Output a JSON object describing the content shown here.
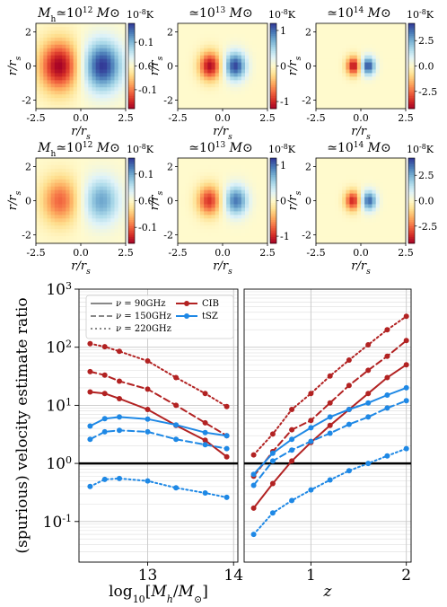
{
  "chart_data": [
    {
      "type": "heatmap",
      "panel": "row1-col1",
      "title": "M_h≃10^12 M⊙",
      "colorbar_unit": "10^-8 K",
      "colorbar_ticks": [
        "0.1",
        "0.0",
        "-0.1"
      ],
      "colorbar_ticks_values": [
        0.1,
        0.0,
        -0.1
      ],
      "vmin": -0.18,
      "vmax": 0.18,
      "dipole": {
        "sigma": 0.75,
        "offset": 1.2,
        "amplitude": 0.18
      },
      "xlabel": "r/r_s",
      "ylabel": "r/r_s",
      "xticks": [
        "-2.5",
        "0.0",
        "2.5"
      ],
      "xticks_values": [
        -2.5,
        0,
        2.5
      ],
      "yticks": [
        "2",
        "0",
        "-2"
      ],
      "yticks_values": [
        2,
        0,
        -2
      ],
      "extent": [
        -2.5,
        2.5,
        -2.5,
        2.5
      ]
    },
    {
      "type": "heatmap",
      "panel": "row1-col2",
      "title": "≃10^13 M⊙",
      "colorbar_unit": "10^-8 K",
      "colorbar_ticks": [
        "1",
        "0",
        "-1"
      ],
      "colorbar_ticks_values": [
        1,
        0,
        -1
      ],
      "vmin": -1.2,
      "vmax": 1.2,
      "dipole": {
        "sigma": 0.42,
        "offset": 0.7,
        "amplitude": 1.15
      },
      "xlabel": "r/r_s",
      "ylabel": "r/r_s",
      "xticks": [
        "-2.5",
        "0.0",
        "2.5"
      ],
      "xticks_values": [
        -2.5,
        0,
        2.5
      ],
      "yticks": [
        "2",
        "0",
        "-2"
      ],
      "yticks_values": [
        2,
        0,
        -2
      ],
      "extent": [
        -2.5,
        2.5,
        -2.5,
        2.5
      ]
    },
    {
      "type": "heatmap",
      "panel": "row1-col3",
      "title": "≃10^14 M⊙",
      "colorbar_unit": "10^-8 K",
      "colorbar_ticks": [
        "2.5",
        "0.0",
        "-2.5"
      ],
      "colorbar_ticks_values": [
        2.5,
        0.0,
        -2.5
      ],
      "vmin": -4.2,
      "vmax": 4.2,
      "dipole": {
        "sigma": 0.28,
        "offset": 0.4,
        "amplitude": 4.0
      },
      "xlabel": "r/r_s",
      "ylabel": "r/r_s",
      "xticks": [
        "-2.5",
        "0.0",
        "2.5"
      ],
      "xticks_values": [
        -2.5,
        0,
        2.5
      ],
      "yticks": [
        "2",
        "0",
        "-2"
      ],
      "yticks_values": [
        2,
        0,
        -2
      ],
      "extent": [
        -2.5,
        2.5,
        -2.5,
        2.5
      ]
    },
    {
      "type": "heatmap",
      "panel": "row2-col1",
      "title": "M_h≃10^12 M⊙",
      "colorbar_unit": "10^-8 K",
      "colorbar_ticks": [
        "0.1",
        "0.0",
        "-0.1"
      ],
      "colorbar_ticks_values": [
        0.1,
        0.0,
        -0.1
      ],
      "vmin": -0.16,
      "vmax": 0.16,
      "dipole": {
        "sigma": 0.7,
        "offset": 1.15,
        "amplitude": 0.1
      },
      "xlabel": "r/r_s",
      "ylabel": "r/r_s",
      "xticks": [
        "-2.5",
        "0.0",
        "2.5"
      ],
      "xticks_values": [
        -2.5,
        0,
        2.5
      ],
      "yticks": [
        "2",
        "0",
        "-2"
      ],
      "yticks_values": [
        2,
        0,
        -2
      ],
      "extent": [
        -2.5,
        2.5,
        -2.5,
        2.5
      ]
    },
    {
      "type": "heatmap",
      "panel": "row2-col2",
      "title": "≃10^13 M⊙",
      "colorbar_unit": "10^-8 K",
      "colorbar_ticks": [
        "1",
        "0",
        "-1"
      ],
      "colorbar_ticks_values": [
        1,
        0,
        -1
      ],
      "vmin": -1.2,
      "vmax": 1.2,
      "dipole": {
        "sigma": 0.45,
        "offset": 0.75,
        "amplitude": 0.95
      },
      "xlabel": "r/r_s",
      "ylabel": "r/r_s",
      "xticks": [
        "-2.5",
        "0.0",
        "2.5"
      ],
      "xticks_values": [
        -2.5,
        0,
        2.5
      ],
      "yticks": [
        "2",
        "0",
        "-2"
      ],
      "yticks_values": [
        2,
        0,
        -2
      ],
      "extent": [
        -2.5,
        2.5,
        -2.5,
        2.5
      ]
    },
    {
      "type": "heatmap",
      "panel": "row2-col3",
      "title": "≃10^14 M⊙",
      "colorbar_unit": "10^-8 K",
      "colorbar_ticks": [
        "2.5",
        "0.0",
        "-2.5"
      ],
      "colorbar_ticks_values": [
        2.5,
        0.0,
        -2.5
      ],
      "vmin": -4.2,
      "vmax": 4.2,
      "dipole": {
        "sigma": 0.3,
        "offset": 0.45,
        "amplitude": 3.6
      },
      "xlabel": "r/r_s",
      "ylabel": "r/r_s",
      "xticks": [
        "-2.5",
        "0.0",
        "2.5"
      ],
      "xticks_values": [
        -2.5,
        0,
        2.5
      ],
      "yticks": [
        "2",
        "0",
        "-2"
      ],
      "yticks_values": [
        2,
        0,
        -2
      ],
      "extent": [
        -2.5,
        2.5,
        -2.5,
        2.5
      ]
    },
    {
      "type": "line",
      "panel": "bottom-left",
      "ylabel": "(spurious) velocity estimate ratio",
      "xlabel": "log10[M_h/M⊙]",
      "yscale": "log",
      "xlim": [
        12.2,
        14.05
      ],
      "ylim": [
        0.02,
        1000
      ],
      "xticks": [
        "13",
        "14"
      ],
      "xticks_values": [
        13,
        14
      ],
      "yticks": [
        "10^-1",
        "10^0",
        "10^1",
        "10^2",
        "10^3"
      ],
      "yticks_values": [
        0.1,
        1,
        10,
        100,
        1000
      ],
      "reference_line": 1,
      "legend": {
        "placement": "top",
        "styles": [
          {
            "label": "ν = 90GHz",
            "dash": "solid"
          },
          {
            "label": "ν = 150GHz",
            "dash": "dashed"
          },
          {
            "label": "ν = 220GHz",
            "dash": "dotted"
          }
        ],
        "components": [
          {
            "label": "CIB",
            "color": "#b22222"
          },
          {
            "label": "tSZ",
            "color": "#1e88e5"
          }
        ]
      },
      "series": [
        {
          "component": "CIB",
          "nu": "90GHz",
          "color": "#b22222",
          "dash": "solid",
          "x": [
            12.33,
            12.5,
            12.67,
            13.0,
            13.33,
            13.67,
            13.92
          ],
          "y": [
            17,
            16,
            13,
            8.5,
            4.5,
            2.5,
            1.3
          ]
        },
        {
          "component": "CIB",
          "nu": "150GHz",
          "color": "#b22222",
          "dash": "dashed",
          "x": [
            12.33,
            12.5,
            12.67,
            13.0,
            13.33,
            13.67,
            13.92
          ],
          "y": [
            38,
            33,
            26,
            19,
            10,
            5,
            3
          ]
        },
        {
          "component": "CIB",
          "nu": "220GHz",
          "color": "#b22222",
          "dash": "dotted",
          "x": [
            12.33,
            12.5,
            12.67,
            13.0,
            13.33,
            13.67,
            13.92
          ],
          "y": [
            115,
            102,
            85,
            58,
            30,
            16,
            9.5
          ]
        },
        {
          "component": "tSZ",
          "nu": "90GHz",
          "color": "#1e88e5",
          "dash": "solid",
          "x": [
            12.33,
            12.5,
            12.67,
            13.0,
            13.33,
            13.67,
            13.92
          ],
          "y": [
            4.4,
            5.9,
            6.3,
            5.8,
            4.6,
            3.4,
            3.0
          ]
        },
        {
          "component": "tSZ",
          "nu": "150GHz",
          "color": "#1e88e5",
          "dash": "dashed",
          "x": [
            12.33,
            12.5,
            12.67,
            13.0,
            13.33,
            13.67,
            13.92
          ],
          "y": [
            2.6,
            3.5,
            3.7,
            3.5,
            2.6,
            2.1,
            1.8
          ]
        },
        {
          "component": "tSZ",
          "nu": "220GHz",
          "color": "#1e88e5",
          "dash": "dotted",
          "x": [
            12.33,
            12.5,
            12.67,
            13.0,
            13.33,
            13.67,
            13.92
          ],
          "y": [
            0.4,
            0.53,
            0.55,
            0.5,
            0.38,
            0.31,
            0.26
          ]
        }
      ]
    },
    {
      "type": "line",
      "panel": "bottom-right",
      "xlabel": "z",
      "yscale": "log",
      "xlim": [
        0.3,
        2.05
      ],
      "ylim": [
        0.02,
        1000
      ],
      "xticks": [
        "1",
        "2"
      ],
      "xticks_values": [
        1,
        2
      ],
      "reference_line": 1,
      "series": [
        {
          "component": "CIB",
          "nu": "90GHz",
          "color": "#b22222",
          "dash": "solid",
          "x": [
            0.4,
            0.6,
            0.8,
            1.0,
            1.2,
            1.4,
            1.6,
            1.8,
            2.0
          ],
          "y": [
            0.17,
            0.45,
            1.1,
            2.3,
            4.5,
            8.5,
            16,
            30,
            50
          ]
        },
        {
          "component": "CIB",
          "nu": "150GHz",
          "color": "#b22222",
          "dash": "dashed",
          "x": [
            0.4,
            0.6,
            0.8,
            1.0,
            1.2,
            1.4,
            1.6,
            1.8,
            2.0
          ],
          "y": [
            0.6,
            1.6,
            3.8,
            5.5,
            11,
            22,
            40,
            70,
            130
          ]
        },
        {
          "component": "CIB",
          "nu": "220GHz",
          "color": "#b22222",
          "dash": "dotted",
          "x": [
            0.4,
            0.6,
            0.8,
            1.0,
            1.2,
            1.4,
            1.6,
            1.8,
            2.0
          ],
          "y": [
            1.4,
            3.2,
            8.5,
            16,
            32,
            60,
            110,
            200,
            340
          ]
        },
        {
          "component": "tSZ",
          "nu": "90GHz",
          "color": "#1e88e5",
          "dash": "solid",
          "x": [
            0.4,
            0.6,
            0.8,
            1.0,
            1.2,
            1.4,
            1.6,
            1.8,
            2.0
          ],
          "y": [
            0.65,
            1.5,
            2.6,
            4.1,
            6.3,
            8.5,
            11,
            15,
            20
          ]
        },
        {
          "component": "tSZ",
          "nu": "150GHz",
          "color": "#1e88e5",
          "dash": "dashed",
          "x": [
            0.4,
            0.6,
            0.8,
            1.0,
            1.2,
            1.4,
            1.6,
            1.8,
            2.0
          ],
          "y": [
            0.42,
            1.1,
            1.7,
            2.4,
            3.3,
            4.7,
            6.3,
            9,
            12
          ]
        },
        {
          "component": "tSZ",
          "nu": "220GHz",
          "color": "#1e88e5",
          "dash": "dotted",
          "x": [
            0.4,
            0.6,
            0.8,
            1.0,
            1.2,
            1.4,
            1.6,
            1.8,
            2.0
          ],
          "y": [
            0.06,
            0.14,
            0.23,
            0.35,
            0.52,
            0.75,
            1.0,
            1.35,
            1.8
          ]
        }
      ]
    }
  ]
}
